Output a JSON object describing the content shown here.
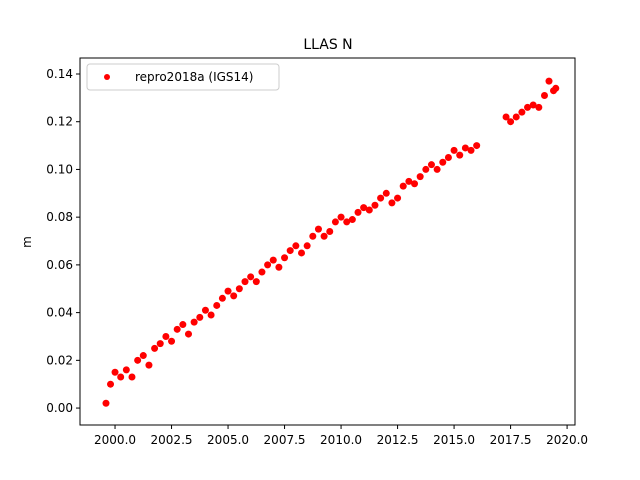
{
  "chart_data": {
    "type": "scatter",
    "title": "LLAS N",
    "y_label": "m",
    "legend_position": "upper left",
    "grid": false,
    "x": [
      1999.6,
      1999.8,
      2000.0,
      2000.25,
      2000.5,
      2000.75,
      2001.0,
      2001.25,
      2001.5,
      2001.75,
      2002.0,
      2002.25,
      2002.5,
      2002.75,
      2003.0,
      2003.25,
      2003.5,
      2003.75,
      2004.0,
      2004.25,
      2004.5,
      2004.75,
      2005.0,
      2005.25,
      2005.5,
      2005.75,
      2006.0,
      2006.25,
      2006.5,
      2006.75,
      2007.0,
      2007.25,
      2007.5,
      2007.75,
      2008.0,
      2008.25,
      2008.5,
      2008.75,
      2009.0,
      2009.25,
      2009.5,
      2009.75,
      2010.0,
      2010.25,
      2010.5,
      2010.75,
      2011.0,
      2011.25,
      2011.5,
      2011.75,
      2012.0,
      2012.25,
      2012.5,
      2012.75,
      2013.0,
      2013.25,
      2013.5,
      2013.75,
      2014.0,
      2014.25,
      2014.5,
      2014.75,
      2015.0,
      2015.25,
      2015.5,
      2015.75,
      2016.0,
      2017.3,
      2017.5,
      2017.75,
      2018.0,
      2018.25,
      2018.5,
      2018.75,
      2019.0,
      2019.2,
      2019.4,
      2019.5
    ],
    "series": [
      {
        "name": "repro2018a (IGS14)",
        "color": "#ff0000",
        "values": [
          0.002,
          0.01,
          0.015,
          0.013,
          0.016,
          0.013,
          0.02,
          0.022,
          0.018,
          0.025,
          0.027,
          0.03,
          0.028,
          0.033,
          0.035,
          0.031,
          0.036,
          0.038,
          0.041,
          0.039,
          0.043,
          0.046,
          0.049,
          0.047,
          0.05,
          0.053,
          0.055,
          0.053,
          0.057,
          0.06,
          0.062,
          0.059,
          0.063,
          0.066,
          0.068,
          0.065,
          0.068,
          0.072,
          0.075,
          0.072,
          0.074,
          0.078,
          0.08,
          0.078,
          0.079,
          0.082,
          0.084,
          0.083,
          0.085,
          0.088,
          0.09,
          0.086,
          0.088,
          0.093,
          0.095,
          0.094,
          0.097,
          0.1,
          0.102,
          0.1,
          0.103,
          0.105,
          0.108,
          0.106,
          0.109,
          0.108,
          0.11,
          0.122,
          0.12,
          0.122,
          0.124,
          0.126,
          0.127,
          0.126,
          0.131,
          0.137,
          0.133,
          0.134
        ]
      }
    ],
    "xlim": [
      1998.45,
      2020.35
    ],
    "ylim": [
      -0.0071,
      0.1467
    ],
    "xticks": [
      {
        "value": 2000,
        "label": "2000.0"
      },
      {
        "value": 2002.5,
        "label": "2002.5"
      },
      {
        "value": 2005,
        "label": "2005.0"
      },
      {
        "value": 2007.5,
        "label": "2007.5"
      },
      {
        "value": 2010,
        "label": "2010.0"
      },
      {
        "value": 2012.5,
        "label": "2012.5"
      },
      {
        "value": 2015,
        "label": "2015.0"
      },
      {
        "value": 2017.5,
        "label": "2017.5"
      },
      {
        "value": 2020,
        "label": "2020.0"
      }
    ],
    "yticks": [
      {
        "value": 0,
        "label": "0.00"
      },
      {
        "value": 0.02,
        "label": "0.02"
      },
      {
        "value": 0.04,
        "label": "0.04"
      },
      {
        "value": 0.06,
        "label": "0.06"
      },
      {
        "value": 0.08,
        "label": "0.08"
      },
      {
        "value": 0.1,
        "label": "0.10"
      },
      {
        "value": 0.12,
        "label": "0.12"
      },
      {
        "value": 0.14,
        "label": "0.14"
      }
    ]
  }
}
